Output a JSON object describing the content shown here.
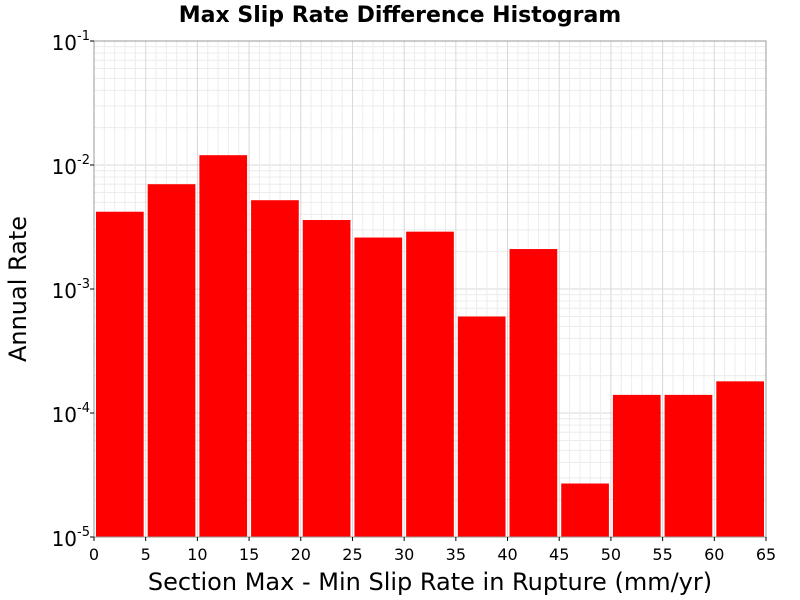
{
  "chart_data": {
    "type": "bar",
    "title": "Max Slip Rate Difference Histogram",
    "xlabel": "Section Max - Min Slip Rate in Rupture (mm/yr)",
    "ylabel": "Annual Rate",
    "y_scale": "log",
    "xlim": [
      0,
      65
    ],
    "ylim": [
      1e-05,
      0.1
    ],
    "x_ticks": [
      "0",
      "5",
      "10",
      "15",
      "20",
      "25",
      "30",
      "35",
      "40",
      "45",
      "50",
      "55",
      "60",
      "65"
    ],
    "y_ticks": [
      {
        "base": "10",
        "exp": "-1",
        "value": 0.1
      },
      {
        "base": "10",
        "exp": "-2",
        "value": 0.01
      },
      {
        "base": "10",
        "exp": "-3",
        "value": 0.001
      },
      {
        "base": "10",
        "exp": "-4",
        "value": 0.0001
      },
      {
        "base": "10",
        "exp": "-5",
        "value": 1e-05
      }
    ],
    "bin_width": 5,
    "bins": [
      {
        "x": 0,
        "value": 0.0042
      },
      {
        "x": 5,
        "value": 0.007
      },
      {
        "x": 10,
        "value": 0.012
      },
      {
        "x": 15,
        "value": 0.0052
      },
      {
        "x": 20,
        "value": 0.0036
      },
      {
        "x": 25,
        "value": 0.0026
      },
      {
        "x": 30,
        "value": 0.0029
      },
      {
        "x": 35,
        "value": 0.0006
      },
      {
        "x": 40,
        "value": 0.0021
      },
      {
        "x": 45,
        "value": 2.7e-05
      },
      {
        "x": 50,
        "value": 0.00014
      },
      {
        "x": 55,
        "value": 0.00014
      },
      {
        "x": 60,
        "value": 0.00018
      }
    ],
    "bar_color": "#ff0000",
    "grid": true,
    "minor_grid": true
  }
}
